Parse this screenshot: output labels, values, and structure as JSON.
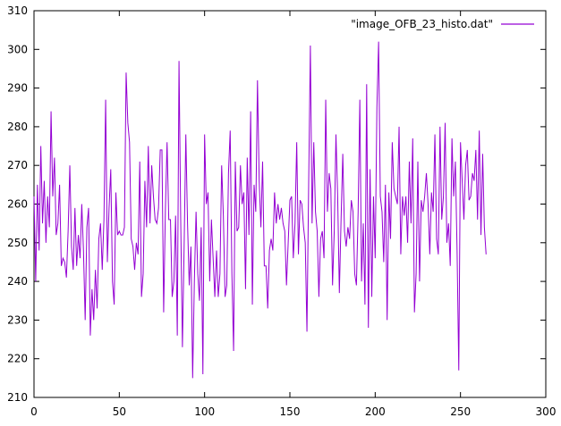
{
  "chart_data": {
    "type": "line",
    "title": "",
    "xlabel": "",
    "ylabel": "",
    "xlim": [
      0,
      300
    ],
    "ylim": [
      210,
      310
    ],
    "xticks": [
      0,
      50,
      100,
      150,
      200,
      250,
      300
    ],
    "yticks": [
      210,
      220,
      230,
      240,
      250,
      260,
      270,
      280,
      290,
      300,
      310
    ],
    "xtick_labels": [
      "0",
      "50",
      "100",
      "150",
      "200",
      "250",
      "300"
    ],
    "ytick_labels": [
      "210",
      "220",
      "230",
      "240",
      "250",
      "260",
      "270",
      "280",
      "290",
      "300",
      "310"
    ],
    "grid": false,
    "legend_position": "top-right",
    "series": [
      {
        "name": "\"image_OFB_23_histo.dat\"",
        "color": "#9400d3",
        "x_start": 0,
        "x_step": 1,
        "values": [
          262,
          240,
          265,
          248,
          275,
          255,
          266,
          250,
          262,
          254,
          284,
          262,
          272,
          252,
          255,
          265,
          244,
          246,
          245,
          241,
          253,
          270,
          249,
          243,
          259,
          244,
          252,
          246,
          260,
          248,
          230,
          254,
          259,
          226,
          238,
          230,
          243,
          233,
          251,
          255,
          243,
          256,
          287,
          245,
          259,
          269,
          240,
          234,
          263,
          252,
          253,
          252,
          252,
          254,
          294,
          281,
          276,
          251,
          249,
          243,
          250,
          247,
          271,
          236,
          242,
          266,
          254,
          275,
          255,
          270,
          262,
          256,
          255,
          259,
          274,
          274,
          232,
          258,
          276,
          256,
          256,
          236,
          240,
          257,
          226,
          297,
          256,
          223,
          249,
          278,
          255,
          239,
          249,
          215,
          240,
          258,
          242,
          235,
          254,
          216,
          278,
          260,
          263,
          240,
          256,
          246,
          236,
          248,
          236,
          242,
          270,
          257,
          236,
          239,
          268,
          279,
          242,
          222,
          271,
          253,
          254,
          270,
          260,
          263,
          238,
          272,
          252,
          284,
          234,
          265,
          258,
          292,
          266,
          254,
          271,
          244,
          244,
          233,
          248,
          251,
          248,
          263,
          255,
          260,
          256,
          259,
          255,
          253,
          239,
          250,
          261,
          262,
          246,
          255,
          276,
          247,
          261,
          260,
          254,
          250,
          227,
          265,
          301,
          255,
          276,
          258,
          253,
          236,
          251,
          253,
          246,
          287,
          258,
          268,
          264,
          239,
          253,
          278,
          262,
          237,
          256,
          273,
          253,
          249,
          254,
          251,
          261,
          258,
          242,
          239,
          258,
          287,
          240,
          255,
          234,
          291,
          228,
          269,
          236,
          262,
          246,
          285,
          302,
          262,
          258,
          245,
          265,
          230,
          263,
          251,
          276,
          264,
          262,
          260,
          280,
          247,
          262,
          257,
          262,
          250,
          271,
          255,
          277,
          232,
          242,
          271,
          240,
          261,
          258,
          262,
          268,
          260,
          247,
          263,
          258,
          278,
          251,
          247,
          280,
          256,
          262,
          281,
          250,
          255,
          244,
          277,
          262,
          271,
          248,
          217,
          276,
          266,
          256,
          270,
          274,
          261,
          262,
          268,
          266,
          274,
          256,
          279,
          252,
          273,
          254,
          247
        ]
      }
    ]
  }
}
